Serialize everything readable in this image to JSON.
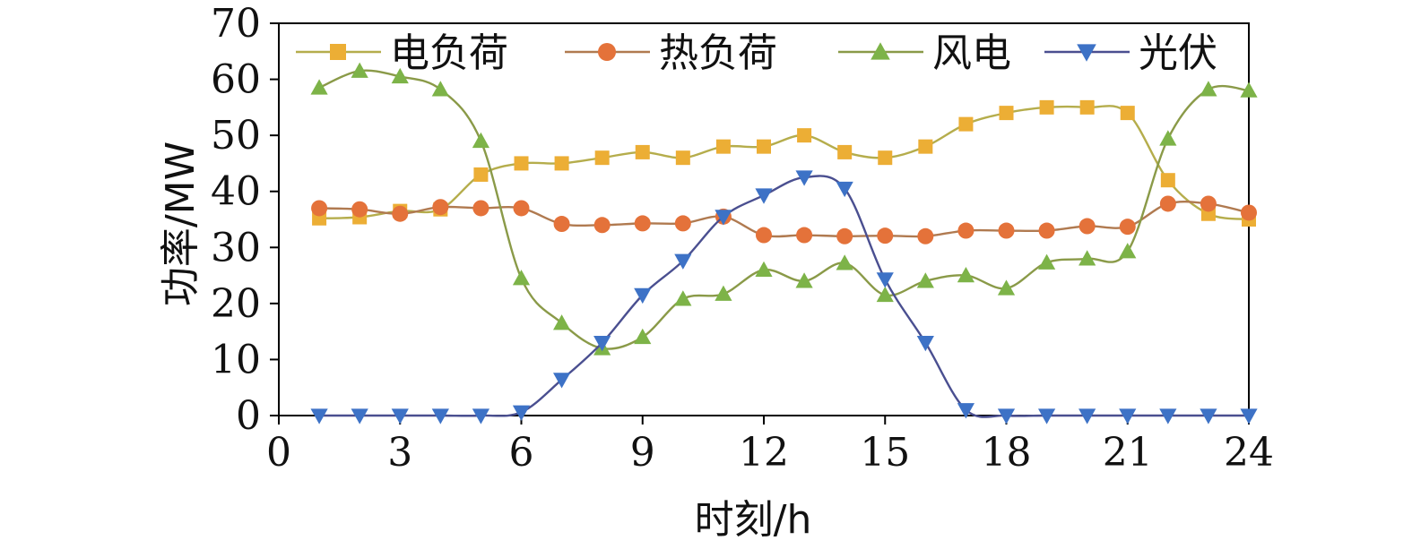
{
  "chart_data": {
    "type": "line",
    "xlabel": "时刻/h",
    "ylabel": "功率/MW",
    "xlim": [
      0,
      24
    ],
    "ylim": [
      0,
      70
    ],
    "xticks": [
      0,
      3,
      6,
      9,
      12,
      15,
      18,
      21,
      24
    ],
    "yticks": [
      0,
      10,
      20,
      30,
      40,
      50,
      60,
      70
    ],
    "grid": false,
    "legend_position": "top",
    "x": [
      1,
      2,
      3,
      4,
      5,
      6,
      7,
      8,
      9,
      10,
      11,
      12,
      13,
      14,
      15,
      16,
      17,
      18,
      19,
      20,
      21,
      22,
      23,
      24
    ],
    "series": [
      {
        "name": "电负荷",
        "marker": "square",
        "color": "#ECAE35",
        "line_color": "#B5AD4C",
        "values": [
          35.2,
          35.4,
          36.5,
          36.8,
          43,
          45,
          45,
          46,
          47,
          46,
          48,
          48,
          50,
          47,
          46,
          48,
          52,
          54,
          55,
          55,
          54,
          42,
          36,
          35
        ]
      },
      {
        "name": "热负荷",
        "marker": "circle",
        "color": "#E4723A",
        "line_color": "#B07A50",
        "values": [
          37,
          36.8,
          36,
          37.2,
          37,
          37,
          34.2,
          34,
          34.3,
          34.3,
          35.5,
          32.2,
          32.2,
          32,
          32.1,
          32,
          33,
          33,
          33,
          33.8,
          33.7,
          37.8,
          37.8,
          36.2
        ]
      },
      {
        "name": "风电",
        "marker": "triangle-up",
        "color": "#7DB348",
        "line_color": "#8A9A48",
        "values": [
          58.5,
          61.5,
          60.5,
          58.2,
          49,
          24.5,
          16.5,
          12,
          14,
          20.8,
          21.7,
          26,
          24,
          27.2,
          21.5,
          24,
          25,
          22.7,
          27.3,
          28,
          29.3,
          49.4,
          58.2,
          58
        ]
      },
      {
        "name": "光伏",
        "marker": "triangle-down",
        "color": "#3D72C6",
        "line_color": "#4A4F90",
        "values": [
          0,
          0,
          0,
          0,
          0,
          0.6,
          6.4,
          13,
          21.5,
          27.6,
          35.5,
          39.3,
          42.5,
          40.5,
          24.3,
          13,
          1,
          0,
          0,
          0,
          0,
          0,
          0,
          0
        ]
      }
    ]
  }
}
